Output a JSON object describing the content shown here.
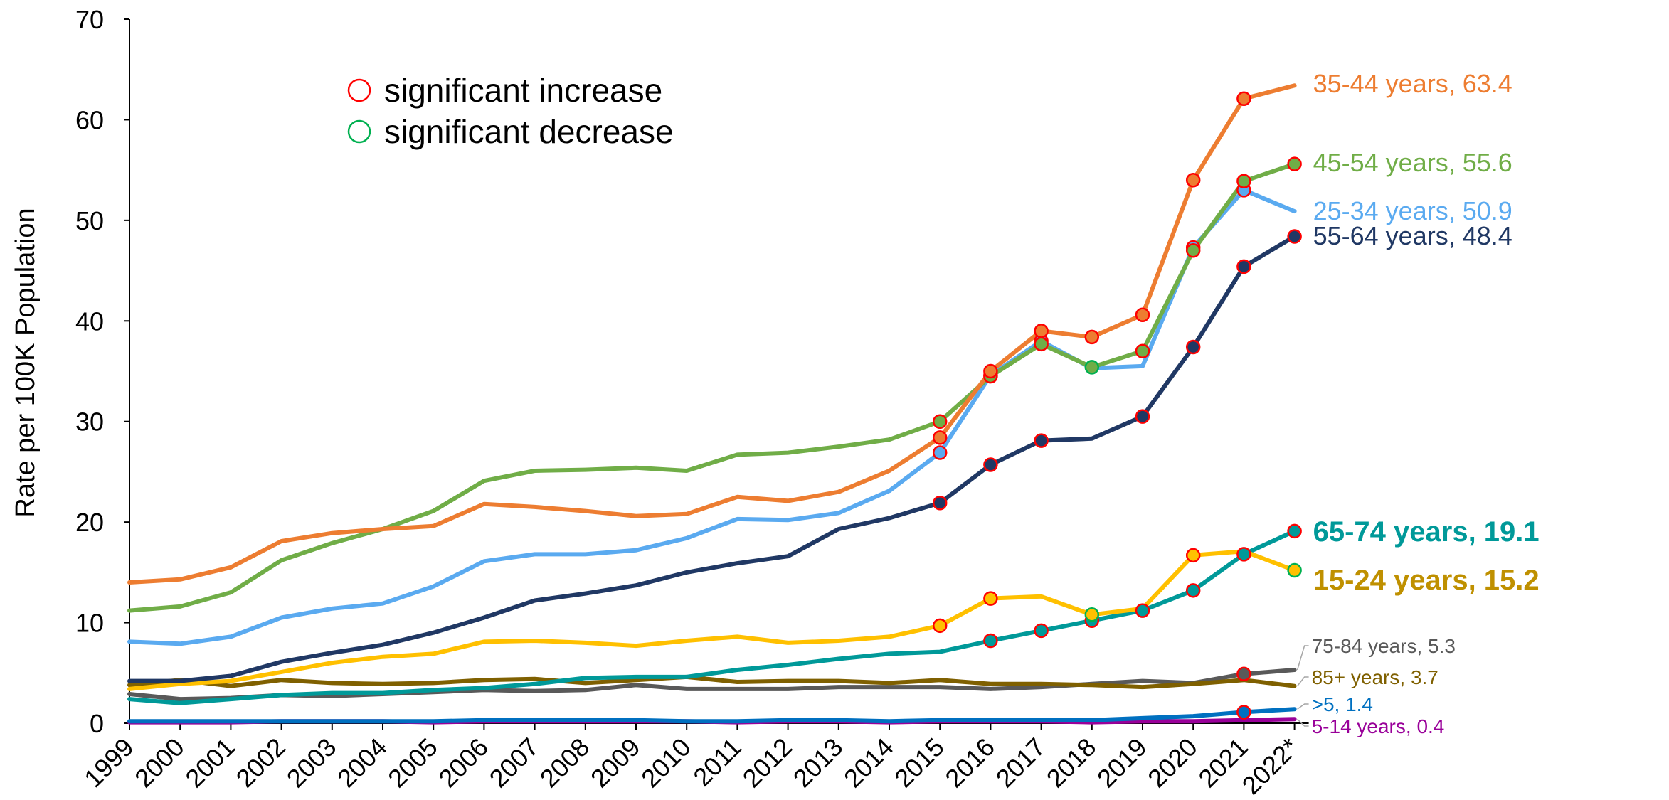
{
  "chart_data": {
    "type": "line",
    "xlabel": "",
    "ylabel": "Rate per 100K Population",
    "ylim": [
      0,
      70
    ],
    "yticks": [
      "0",
      "10",
      "20",
      "30",
      "40",
      "50",
      "60",
      "70"
    ],
    "grid": false,
    "x": [
      "1999",
      "2000",
      "2001",
      "2002",
      "2003",
      "2004",
      "2005",
      "2006",
      "2007",
      "2008",
      "2009",
      "2010",
      "2011",
      "2012",
      "2013",
      "2014",
      "2015",
      "2016",
      "2017",
      "2018",
      "2019",
      "2020",
      "2021",
      "2022*"
    ],
    "legend": {
      "placement": "top-left",
      "items": [
        {
          "label": "significant increase",
          "color": "#ff0000"
        },
        {
          "label": "significant decrease",
          "color": "#00b050"
        }
      ]
    },
    "series": [
      {
        "name": "5-14 years",
        "end_label": "5-14 years, 0.4",
        "color": "#990099",
        "label_color": "#990099",
        "values": [
          0.1,
          0.1,
          0.1,
          0.2,
          0.2,
          0.2,
          0.1,
          0.2,
          0.2,
          0.2,
          0.2,
          0.2,
          0.1,
          0.2,
          0.2,
          0.1,
          0.2,
          0.2,
          0.2,
          0.1,
          0.2,
          0.2,
          0.3,
          0.4
        ],
        "increase": [],
        "decrease": []
      },
      {
        "name": ">5",
        "end_label": ">5, 1.4",
        "color": "#0070c0",
        "label_color": "#0070c0",
        "values": [
          0.2,
          0.2,
          0.2,
          0.2,
          0.2,
          0.2,
          0.2,
          0.3,
          0.3,
          0.3,
          0.3,
          0.2,
          0.2,
          0.3,
          0.3,
          0.2,
          0.3,
          0.3,
          0.3,
          0.3,
          0.5,
          0.7,
          1.1,
          1.4
        ],
        "increase": [
          "2021"
        ],
        "decrease": []
      },
      {
        "name": "75-84 years",
        "end_label": "75-84 years, 5.3",
        "color": "#595959",
        "label_color": "#595959",
        "values": [
          2.9,
          2.4,
          2.5,
          2.8,
          2.7,
          2.9,
          3.1,
          3.3,
          3.2,
          3.3,
          3.8,
          3.4,
          3.4,
          3.4,
          3.6,
          3.6,
          3.6,
          3.4,
          3.6,
          3.9,
          4.2,
          4.0,
          4.9,
          5.3
        ],
        "increase": [
          "2021"
        ],
        "decrease": []
      },
      {
        "name": "85+ years",
        "end_label": "85+ years, 3.7",
        "color": "#7f6000",
        "label_color": "#7f6000",
        "values": [
          3.8,
          4.3,
          3.7,
          4.3,
          4.0,
          3.9,
          4.0,
          4.3,
          4.4,
          4.0,
          4.3,
          4.6,
          4.1,
          4.2,
          4.2,
          4.0,
          4.3,
          3.9,
          3.9,
          3.8,
          3.6,
          3.9,
          4.3,
          3.7
        ],
        "increase": [],
        "decrease": []
      },
      {
        "name": "65-74 years",
        "end_label": "65-74 years, 19.1",
        "color": "#009999",
        "label_color": "#009999",
        "values": [
          2.4,
          2.0,
          2.4,
          2.8,
          3.0,
          3.0,
          3.3,
          3.5,
          3.9,
          4.5,
          4.6,
          4.6,
          5.3,
          5.8,
          6.4,
          6.9,
          7.1,
          8.2,
          9.2,
          10.2,
          11.2,
          13.2,
          16.8,
          19.1
        ],
        "increase": [
          "2016",
          "2017",
          "2018",
          "2019",
          "2020",
          "2021",
          "2022*"
        ],
        "decrease": []
      },
      {
        "name": "15-24 years",
        "end_label": "15-24 years, 15.2",
        "color": "#ffc000",
        "label_color": "#bf9000",
        "values": [
          3.4,
          3.9,
          4.2,
          5.1,
          6.0,
          6.6,
          6.9,
          8.1,
          8.2,
          8.0,
          7.7,
          8.2,
          8.6,
          8.0,
          8.2,
          8.6,
          9.7,
          12.4,
          12.6,
          10.8,
          11.4,
          16.7,
          17.1,
          15.2
        ],
        "increase": [
          "2015",
          "2016",
          "2020"
        ],
        "decrease": [
          "2018",
          "2022*"
        ]
      },
      {
        "name": "55-64 years",
        "end_label": "55-64 years, 48.4",
        "color": "#203864",
        "label_color": "#203864",
        "values": [
          4.2,
          4.2,
          4.7,
          6.1,
          7.0,
          7.8,
          9.0,
          10.5,
          12.2,
          12.9,
          13.7,
          15.0,
          15.9,
          16.6,
          19.3,
          20.4,
          21.9,
          25.7,
          28.1,
          28.3,
          30.5,
          37.4,
          45.4,
          48.4
        ],
        "increase": [
          "2015",
          "2016",
          "2017",
          "2019",
          "2020",
          "2021",
          "2022*"
        ],
        "decrease": []
      },
      {
        "name": "25-34 years",
        "end_label": "25-34 years, 50.9",
        "color": "#5aaaf0",
        "label_color": "#5aaaf0",
        "values": [
          8.1,
          7.9,
          8.6,
          10.5,
          11.4,
          11.9,
          13.6,
          16.1,
          16.8,
          16.8,
          17.2,
          18.4,
          20.3,
          20.2,
          20.9,
          23.1,
          26.9,
          34.6,
          38.0,
          35.3,
          35.5,
          47.3,
          53.0,
          50.9
        ],
        "increase": [
          "2015",
          "2016",
          "2017",
          "2020",
          "2021"
        ],
        "decrease": []
      },
      {
        "name": "45-54 years",
        "end_label": "45-54 years, 55.6",
        "color": "#70ad47",
        "label_color": "#70ad47",
        "values": [
          11.2,
          11.6,
          13.0,
          16.2,
          17.9,
          19.3,
          21.1,
          24.1,
          25.1,
          25.2,
          25.4,
          25.1,
          26.7,
          26.9,
          27.5,
          28.2,
          30.0,
          34.5,
          37.7,
          35.4,
          37.0,
          47.0,
          53.9,
          55.6
        ],
        "increase": [
          "2015",
          "2016",
          "2017",
          "2019",
          "2020",
          "2021",
          "2022*"
        ],
        "decrease": [
          "2018"
        ]
      },
      {
        "name": "35-44 years",
        "end_label": "35-44 years, 63.4",
        "color": "#ed7d31",
        "label_color": "#ed7d31",
        "values": [
          14.0,
          14.3,
          15.5,
          18.1,
          18.9,
          19.3,
          19.6,
          21.8,
          21.5,
          21.1,
          20.6,
          20.8,
          22.5,
          22.1,
          23.0,
          25.1,
          28.4,
          35.0,
          39.0,
          38.4,
          40.6,
          54.0,
          62.1,
          63.4
        ],
        "increase": [
          "2015",
          "2016",
          "2017",
          "2018",
          "2019",
          "2020",
          "2021"
        ],
        "decrease": []
      }
    ]
  }
}
